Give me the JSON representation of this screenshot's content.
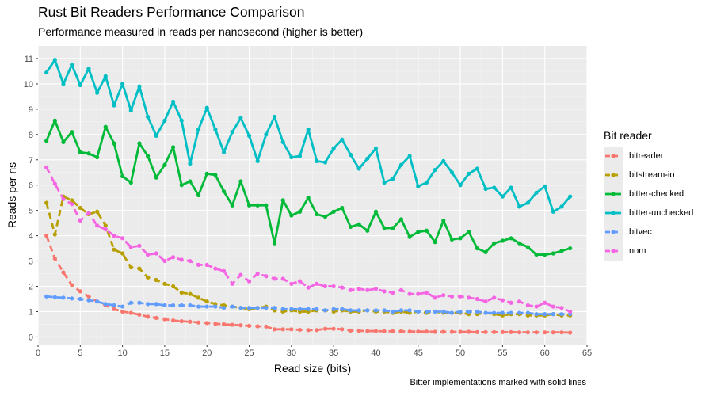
{
  "title": "Rust Bit Readers Performance Comparison",
  "subtitle": "Performance measured in reads per nanosecond (higher is better)",
  "caption": "Bitter implementations marked with solid lines",
  "chart_data": {
    "type": "line",
    "xlabel": "Read size (bits)",
    "ylabel": "Reads per ns",
    "xlim": [
      0,
      65
    ],
    "ylim": [
      -0.3,
      11.5
    ],
    "xticks": [
      0,
      5,
      10,
      15,
      20,
      25,
      30,
      35,
      40,
      45,
      50,
      55,
      60,
      65
    ],
    "yticks": [
      0,
      1,
      2,
      3,
      4,
      5,
      6,
      7,
      8,
      9,
      10,
      11
    ],
    "grid": true,
    "legend_title": "Bit reader",
    "legend_position": "right",
    "x": [
      1,
      2,
      3,
      4,
      5,
      6,
      7,
      8,
      9,
      10,
      11,
      12,
      13,
      14,
      15,
      16,
      17,
      18,
      19,
      20,
      21,
      22,
      23,
      24,
      25,
      26,
      27,
      28,
      29,
      30,
      31,
      32,
      33,
      34,
      35,
      36,
      37,
      38,
      39,
      40,
      41,
      42,
      43,
      44,
      45,
      46,
      47,
      48,
      49,
      50,
      51,
      52,
      53,
      54,
      55,
      56,
      57,
      58,
      59,
      60,
      61,
      62,
      63
    ],
    "series": [
      {
        "name": "bitreader",
        "color": "#F8766D",
        "dashed": true,
        "values": [
          4.0,
          3.1,
          2.55,
          2.05,
          1.8,
          1.6,
          1.4,
          1.25,
          1.1,
          1.0,
          0.95,
          0.88,
          0.8,
          0.75,
          0.7,
          0.65,
          0.62,
          0.6,
          0.57,
          0.55,
          0.52,
          0.5,
          0.48,
          0.46,
          0.44,
          0.42,
          0.41,
          0.3,
          0.3,
          0.3,
          0.28,
          0.27,
          0.27,
          0.32,
          0.32,
          0.3,
          0.25,
          0.24,
          0.23,
          0.23,
          0.22,
          0.22,
          0.22,
          0.21,
          0.21,
          0.21,
          0.2,
          0.2,
          0.2,
          0.2,
          0.2,
          0.19,
          0.19,
          0.19,
          0.19,
          0.19,
          0.18,
          0.18,
          0.18,
          0.18,
          0.18,
          0.18,
          0.17
        ]
      },
      {
        "name": "bitstream-io",
        "color": "#B79F00",
        "dashed": true,
        "values": [
          5.3,
          4.05,
          5.55,
          5.4,
          5.1,
          4.85,
          4.95,
          4.4,
          3.45,
          3.3,
          2.75,
          2.7,
          2.35,
          2.25,
          2.1,
          2.0,
          1.75,
          1.7,
          1.55,
          1.4,
          1.3,
          1.25,
          1.2,
          1.15,
          1.1,
          1.15,
          1.2,
          1.05,
          1.0,
          1.05,
          1.0,
          1.0,
          1.05,
          1.05,
          1.0,
          1.05,
          1.0,
          1.0,
          1.05,
          1.0,
          1.0,
          0.95,
          1.0,
          0.95,
          1.0,
          0.95,
          1.0,
          0.95,
          0.95,
          0.95,
          0.9,
          0.9,
          0.95,
          0.9,
          0.85,
          0.9,
          0.9,
          0.85,
          0.85,
          0.85,
          0.9,
          0.85,
          0.85
        ]
      },
      {
        "name": "bitter-checked",
        "color": "#00BA38",
        "dashed": false,
        "values": [
          7.75,
          8.55,
          7.7,
          8.1,
          7.3,
          7.25,
          7.1,
          8.3,
          7.65,
          6.35,
          6.1,
          7.65,
          7.15,
          6.3,
          6.8,
          7.5,
          6.0,
          6.15,
          5.6,
          6.45,
          6.4,
          5.75,
          5.2,
          6.15,
          5.2,
          5.2,
          5.2,
          3.7,
          5.4,
          4.8,
          4.95,
          5.5,
          4.85,
          4.75,
          4.95,
          5.1,
          4.35,
          4.45,
          4.2,
          4.95,
          4.3,
          4.3,
          4.65,
          3.95,
          4.15,
          4.2,
          3.75,
          4.6,
          3.85,
          3.9,
          4.15,
          3.5,
          3.35,
          3.7,
          3.8,
          3.9,
          3.7,
          3.55,
          3.25,
          3.25,
          3.3,
          3.4,
          3.5
        ]
      },
      {
        "name": "bitter-unchecked",
        "color": "#00BFC4",
        "dashed": false,
        "values": [
          10.45,
          10.95,
          10.0,
          10.75,
          9.95,
          10.6,
          9.65,
          10.3,
          9.15,
          10.0,
          8.95,
          9.9,
          8.7,
          7.95,
          8.55,
          9.3,
          8.55,
          6.85,
          8.2,
          9.05,
          8.2,
          7.3,
          8.1,
          8.65,
          7.95,
          6.95,
          8.0,
          8.7,
          7.7,
          7.1,
          7.15,
          8.2,
          6.95,
          6.9,
          7.45,
          7.8,
          7.2,
          6.65,
          7.05,
          7.45,
          6.1,
          6.25,
          6.8,
          7.15,
          5.95,
          6.1,
          6.6,
          6.95,
          6.5,
          6.0,
          6.45,
          6.65,
          5.85,
          5.9,
          5.55,
          5.9,
          5.15,
          5.3,
          5.7,
          5.95,
          4.95,
          5.15,
          5.55
        ]
      },
      {
        "name": "bitvec",
        "color": "#619CFF",
        "dashed": true,
        "values": [
          1.6,
          1.57,
          1.55,
          1.52,
          1.5,
          1.45,
          1.4,
          1.3,
          1.25,
          1.2,
          1.35,
          1.35,
          1.3,
          1.3,
          1.25,
          1.25,
          1.25,
          1.25,
          1.2,
          1.2,
          1.2,
          1.15,
          1.2,
          1.15,
          1.15,
          1.15,
          1.15,
          1.15,
          1.1,
          1.1,
          1.1,
          1.1,
          1.1,
          1.05,
          1.1,
          1.1,
          1.05,
          1.05,
          1.05,
          1.05,
          1.05,
          1.0,
          1.05,
          1.05,
          1.0,
          1.0,
          1.0,
          1.0,
          0.95,
          1.0,
          1.0,
          1.0,
          0.95,
          0.95,
          0.95,
          0.95,
          0.95,
          0.95,
          0.9,
          0.9,
          0.9,
          0.9,
          0.9
        ]
      },
      {
        "name": "nom",
        "color": "#F564E3",
        "dashed": true,
        "values": [
          6.7,
          6.05,
          5.45,
          5.25,
          4.6,
          4.9,
          4.4,
          4.25,
          4.0,
          3.9,
          3.55,
          3.6,
          3.25,
          3.3,
          3.0,
          3.15,
          3.05,
          3.0,
          2.85,
          2.85,
          2.7,
          2.6,
          2.1,
          2.45,
          2.2,
          2.5,
          2.4,
          2.3,
          2.3,
          2.1,
          2.2,
          1.95,
          2.1,
          2.0,
          2.0,
          1.95,
          1.85,
          1.9,
          1.85,
          1.9,
          1.8,
          1.75,
          1.85,
          1.7,
          1.7,
          1.75,
          1.55,
          1.65,
          1.6,
          1.6,
          1.55,
          1.5,
          1.4,
          1.55,
          1.45,
          1.35,
          1.4,
          1.25,
          1.2,
          1.35,
          1.2,
          1.15,
          1.0
        ]
      }
    ]
  }
}
